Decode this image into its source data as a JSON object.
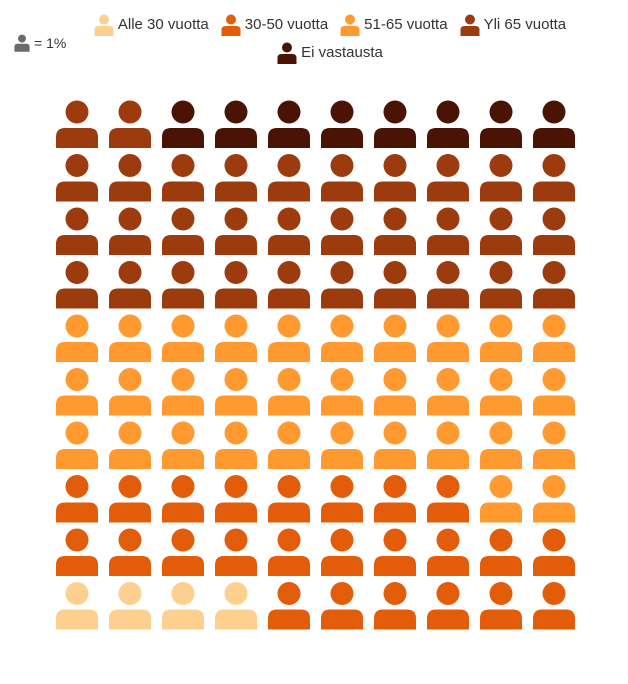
{
  "chart_data": {
    "type": "waffle",
    "grid": {
      "rows": 10,
      "cols": 10,
      "fill_order": "bottom-left, row by row, left to right, upward"
    },
    "unit": "= 1%",
    "series": [
      {
        "name": "Alle 30 vuotta",
        "value": 4,
        "color": "#FDD08F"
      },
      {
        "name": "30-50 vuotta",
        "value": 24,
        "color": "#E35C0A"
      },
      {
        "name": "51-65 vuotta",
        "value": 32,
        "color": "#FF9930"
      },
      {
        "name": "Yli 65 vuotta",
        "value": 32,
        "color": "#9B3B0E"
      },
      {
        "name": "Ei vastausta",
        "value": 8,
        "color": "#4A1404"
      }
    ],
    "legend_position": "top",
    "unit_icon_color": "#6B6B6B"
  }
}
